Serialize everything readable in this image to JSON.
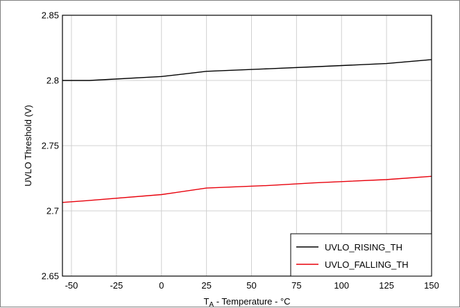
{
  "chart_data": {
    "type": "line",
    "xlabel": {
      "main": "T",
      "subscript": "A",
      "rest": " - Temperature - °C"
    },
    "ylabel": "UVLO Threshold (V)",
    "xlim": [
      -55,
      150
    ],
    "ylim": [
      2.65,
      2.85
    ],
    "xticks": [
      -50,
      -25,
      0,
      25,
      50,
      75,
      100,
      125,
      150
    ],
    "xtick_labels": [
      "-50",
      "-25",
      "0",
      "25",
      "50",
      "75",
      "100",
      "125",
      "150"
    ],
    "yticks": [
      2.65,
      2.7,
      2.75,
      2.8,
      2.85
    ],
    "ytick_labels": [
      "2.65",
      "2.7",
      "2.75",
      "2.8",
      "2.85"
    ],
    "grid": true,
    "legend_position": "bottom-right",
    "series": [
      {
        "name": "UVLO_RISING_TH",
        "color": "#000000",
        "x": [
          -55,
          -40,
          0,
          25,
          60,
          85,
          125,
          150
        ],
        "y": [
          2.8,
          2.8,
          2.803,
          2.807,
          2.809,
          2.8105,
          2.813,
          2.816
        ]
      },
      {
        "name": "UVLO_FALLING_TH",
        "color": "#e8000b",
        "x": [
          -55,
          -40,
          0,
          25,
          60,
          85,
          125,
          150
        ],
        "y": [
          2.7065,
          2.708,
          2.7125,
          2.7175,
          2.7195,
          2.7215,
          2.724,
          2.7265
        ]
      }
    ]
  }
}
